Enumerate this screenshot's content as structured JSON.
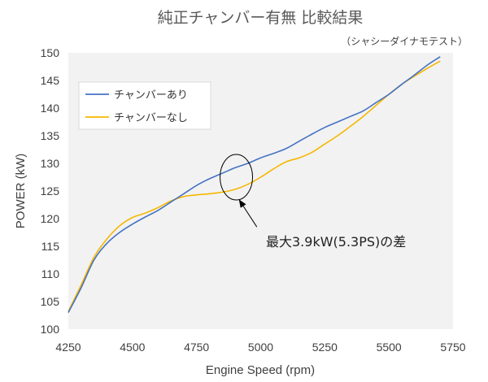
{
  "chart_data": {
    "type": "line",
    "title": "純正チャンバー有無 比較結果",
    "subtitle": "（シャシーダイナモテスト）",
    "xlabel": "Engine Speed (rpm)",
    "ylabel": "POWER (kW)",
    "xlim": [
      4250,
      5750
    ],
    "ylim": [
      100,
      150
    ],
    "xticks": [
      "4250",
      "4500",
      "4750",
      "5000",
      "5250",
      "5500",
      "5750"
    ],
    "yticks": [
      "100",
      "105",
      "110",
      "115",
      "120",
      "125",
      "130",
      "135",
      "140",
      "145",
      "150"
    ],
    "grid": false,
    "legend_position": "top-left",
    "series": [
      {
        "name": "チャンバーあり",
        "color": "#4472C4",
        "x": [
          4250,
          4300,
          4350,
          4400,
          4450,
          4500,
          4550,
          4600,
          4650,
          4700,
          4750,
          4800,
          4850,
          4900,
          4950,
          5000,
          5050,
          5100,
          5150,
          5200,
          5250,
          5300,
          5350,
          5400,
          5450,
          5500,
          5550,
          5600,
          5650,
          5700
        ],
        "y": [
          103,
          107.5,
          112.5,
          115.5,
          117.5,
          119,
          120.3,
          121.5,
          123,
          124.5,
          126,
          127.2,
          128.2,
          129.2,
          130,
          131,
          131.8,
          132.7,
          134,
          135.3,
          136.5,
          137.5,
          138.5,
          139.5,
          141,
          142.5,
          144.3,
          146,
          147.8,
          149.3
        ]
      },
      {
        "name": "チャンバーなし",
        "color": "#F5B800",
        "x": [
          4250,
          4300,
          4350,
          4400,
          4450,
          4500,
          4550,
          4600,
          4650,
          4700,
          4750,
          4800,
          4850,
          4900,
          4950,
          5000,
          5050,
          5100,
          5150,
          5200,
          5250,
          5300,
          5350,
          5400,
          5450,
          5500,
          5550,
          5600,
          5650,
          5700
        ],
        "y": [
          103.2,
          108,
          113,
          116.3,
          118.7,
          120.2,
          121,
          122,
          123.2,
          124,
          124.3,
          124.5,
          124.8,
          125.3,
          126.2,
          127.5,
          129,
          130.3,
          131,
          132,
          133.5,
          135,
          136.7,
          138.5,
          140.5,
          142.5,
          144.3,
          145.8,
          147.2,
          148.5
        ]
      }
    ],
    "annotation": {
      "text": "最大3.9kW(5.3PS)の差",
      "circle_center": [
        4905,
        127.5
      ],
      "arrow_from": [
        4985,
        118.5
      ],
      "arrow_to": [
        4915,
        123.5
      ]
    }
  }
}
